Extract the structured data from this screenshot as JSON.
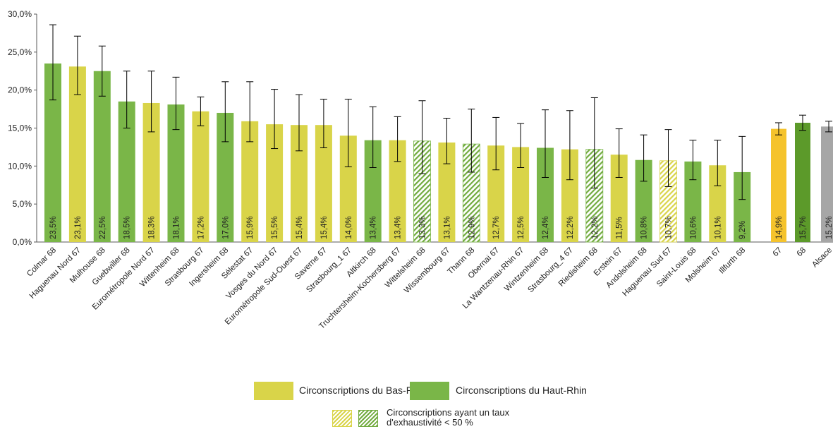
{
  "chart_data": {
    "type": "bar",
    "ylim": [
      0,
      30
    ],
    "y_ticks": [
      "0,0%",
      "5,0%",
      "10,0%",
      "15,0%",
      "20,0%",
      "25,0%",
      "30,0%"
    ],
    "grid": false,
    "legend_position": "bottom-center",
    "colors": {
      "bas_rhin": "#d9d449",
      "haut_rhin": "#7ab648",
      "total_67": "#f5c32c",
      "total_68": "#5c9a2a",
      "total_alsace": "#a6a6a6",
      "error_bar": "#000000",
      "axis": "#595959"
    },
    "categories": [
      {
        "label": "Colmar 68",
        "value": 23.5,
        "display": "23,5%",
        "low": 18.7,
        "high": 28.6,
        "group": "haut_rhin",
        "hatched": false
      },
      {
        "label": "Haguenau Nord 67",
        "value": 23.1,
        "display": "23,1%",
        "low": 19.4,
        "high": 27.1,
        "group": "bas_rhin",
        "hatched": false
      },
      {
        "label": "Mulhouse 68",
        "value": 22.5,
        "display": "22,5%",
        "low": 19.2,
        "high": 25.8,
        "group": "haut_rhin",
        "hatched": false
      },
      {
        "label": "Guebwiller 68",
        "value": 18.5,
        "display": "18,5%",
        "low": 15.0,
        "high": 22.5,
        "group": "haut_rhin",
        "hatched": false
      },
      {
        "label": "Eurométropole Nord 67",
        "value": 18.3,
        "display": "18,3%",
        "low": 14.5,
        "high": 22.5,
        "group": "bas_rhin",
        "hatched": false
      },
      {
        "label": "Wittenheim 68",
        "value": 18.1,
        "display": "18,1%",
        "low": 14.8,
        "high": 21.7,
        "group": "haut_rhin",
        "hatched": false
      },
      {
        "label": "Strasbourg 67",
        "value": 17.2,
        "display": "17,2%",
        "low": 15.3,
        "high": 19.1,
        "group": "bas_rhin",
        "hatched": false
      },
      {
        "label": "Ingersheim 68",
        "value": 17.0,
        "display": "17,0%",
        "low": 13.2,
        "high": 21.1,
        "group": "haut_rhin",
        "hatched": false
      },
      {
        "label": "Sélestat 67",
        "value": 15.9,
        "display": "15,9%",
        "low": 13.2,
        "high": 21.1,
        "group": "bas_rhin",
        "hatched": false
      },
      {
        "label": "Vosges du Nord 67",
        "value": 15.5,
        "display": "15,5%",
        "low": 12.3,
        "high": 20.1,
        "group": "bas_rhin",
        "hatched": false
      },
      {
        "label": "Eurométropole Sud-Ouest 67",
        "value": 15.4,
        "display": "15,4%",
        "low": 12.0,
        "high": 19.4,
        "group": "bas_rhin",
        "hatched": false
      },
      {
        "label": "Saverne 67",
        "value": 15.4,
        "display": "15,4%",
        "low": 12.4,
        "high": 18.8,
        "group": "bas_rhin",
        "hatched": false
      },
      {
        "label": "Strasbourg_1 67",
        "value": 14.0,
        "display": "14,0%",
        "low": 9.9,
        "high": 18.8,
        "group": "bas_rhin",
        "hatched": false
      },
      {
        "label": "Altkirch 68",
        "value": 13.4,
        "display": "13,4%",
        "low": 9.8,
        "high": 17.8,
        "group": "haut_rhin",
        "hatched": false
      },
      {
        "label": "Truchtersheim-Kochersberg 67",
        "value": 13.4,
        "display": "13,4%",
        "low": 10.6,
        "high": 16.5,
        "group": "bas_rhin",
        "hatched": false
      },
      {
        "label": "Wittelsheim 68",
        "value": 13.3,
        "display": "13,3%",
        "low": 9.0,
        "high": 18.6,
        "group": "haut_rhin",
        "hatched": true
      },
      {
        "label": "Wissembourg 67",
        "value": 13.1,
        "display": "13,1%",
        "low": 10.3,
        "high": 16.3,
        "group": "bas_rhin",
        "hatched": false
      },
      {
        "label": "Thann 68",
        "value": 12.9,
        "display": "12,9%",
        "low": 9.2,
        "high": 17.5,
        "group": "haut_rhin",
        "hatched": true
      },
      {
        "label": "Obernai 67",
        "value": 12.7,
        "display": "12,7%",
        "low": 9.5,
        "high": 16.4,
        "group": "bas_rhin",
        "hatched": false
      },
      {
        "label": "La Wantzenau-Rhin 67",
        "value": 12.5,
        "display": "12,5%",
        "low": 9.8,
        "high": 15.6,
        "group": "bas_rhin",
        "hatched": false
      },
      {
        "label": "Wintzenheim 68",
        "value": 12.4,
        "display": "12,4%",
        "low": 8.5,
        "high": 17.4,
        "group": "haut_rhin",
        "hatched": false
      },
      {
        "label": "Strasbourg_4 67",
        "value": 12.2,
        "display": "12,2%",
        "low": 8.2,
        "high": 17.3,
        "group": "bas_rhin",
        "hatched": false
      },
      {
        "label": "Riedisheim 68",
        "value": 12.2,
        "display": "12,2%",
        "low": 7.1,
        "high": 19.0,
        "group": "haut_rhin",
        "hatched": true
      },
      {
        "label": "Erstein 67",
        "value": 11.5,
        "display": "11,5%",
        "low": 8.5,
        "high": 14.9,
        "group": "bas_rhin",
        "hatched": false
      },
      {
        "label": "Andolsheim 68",
        "value": 10.8,
        "display": "10,8%",
        "low": 8.0,
        "high": 14.1,
        "group": "haut_rhin",
        "hatched": false
      },
      {
        "label": "Haguenau Sud 67",
        "value": 10.7,
        "display": "10,7%",
        "low": 7.3,
        "high": 14.8,
        "group": "bas_rhin",
        "hatched": true
      },
      {
        "label": "Saint-Louis 68",
        "value": 10.6,
        "display": "10,6%",
        "low": 8.2,
        "high": 13.4,
        "group": "haut_rhin",
        "hatched": false
      },
      {
        "label": "Molsheim 67",
        "value": 10.1,
        "display": "10,1%",
        "low": 7.4,
        "high": 13.4,
        "group": "bas_rhin",
        "hatched": false
      },
      {
        "label": "Illfurth 68",
        "value": 9.2,
        "display": "9,2%",
        "low": 5.6,
        "high": 13.9,
        "group": "haut_rhin",
        "hatched": false
      },
      {
        "label": "67",
        "value": 14.9,
        "display": "14,9%",
        "low": 14.1,
        "high": 15.7,
        "group": "total_67",
        "hatched": false
      },
      {
        "label": "68",
        "value": 15.7,
        "display": "15,7%",
        "low": 14.7,
        "high": 16.7,
        "group": "total_68",
        "hatched": false
      },
      {
        "label": "Alsace",
        "value": 15.2,
        "display": "15,2%",
        "low": 14.5,
        "high": 15.9,
        "group": "total_alsace",
        "hatched": false
      }
    ]
  },
  "legend": {
    "bas_rhin_label": "Circonscriptions du Bas-Rhin",
    "haut_rhin_label": "Circonscriptions du Haut-Rhin",
    "hatched_label_line1": "Circonscriptions ayant un taux",
    "hatched_label_line2": "d'exhaustivité < 50 %"
  }
}
